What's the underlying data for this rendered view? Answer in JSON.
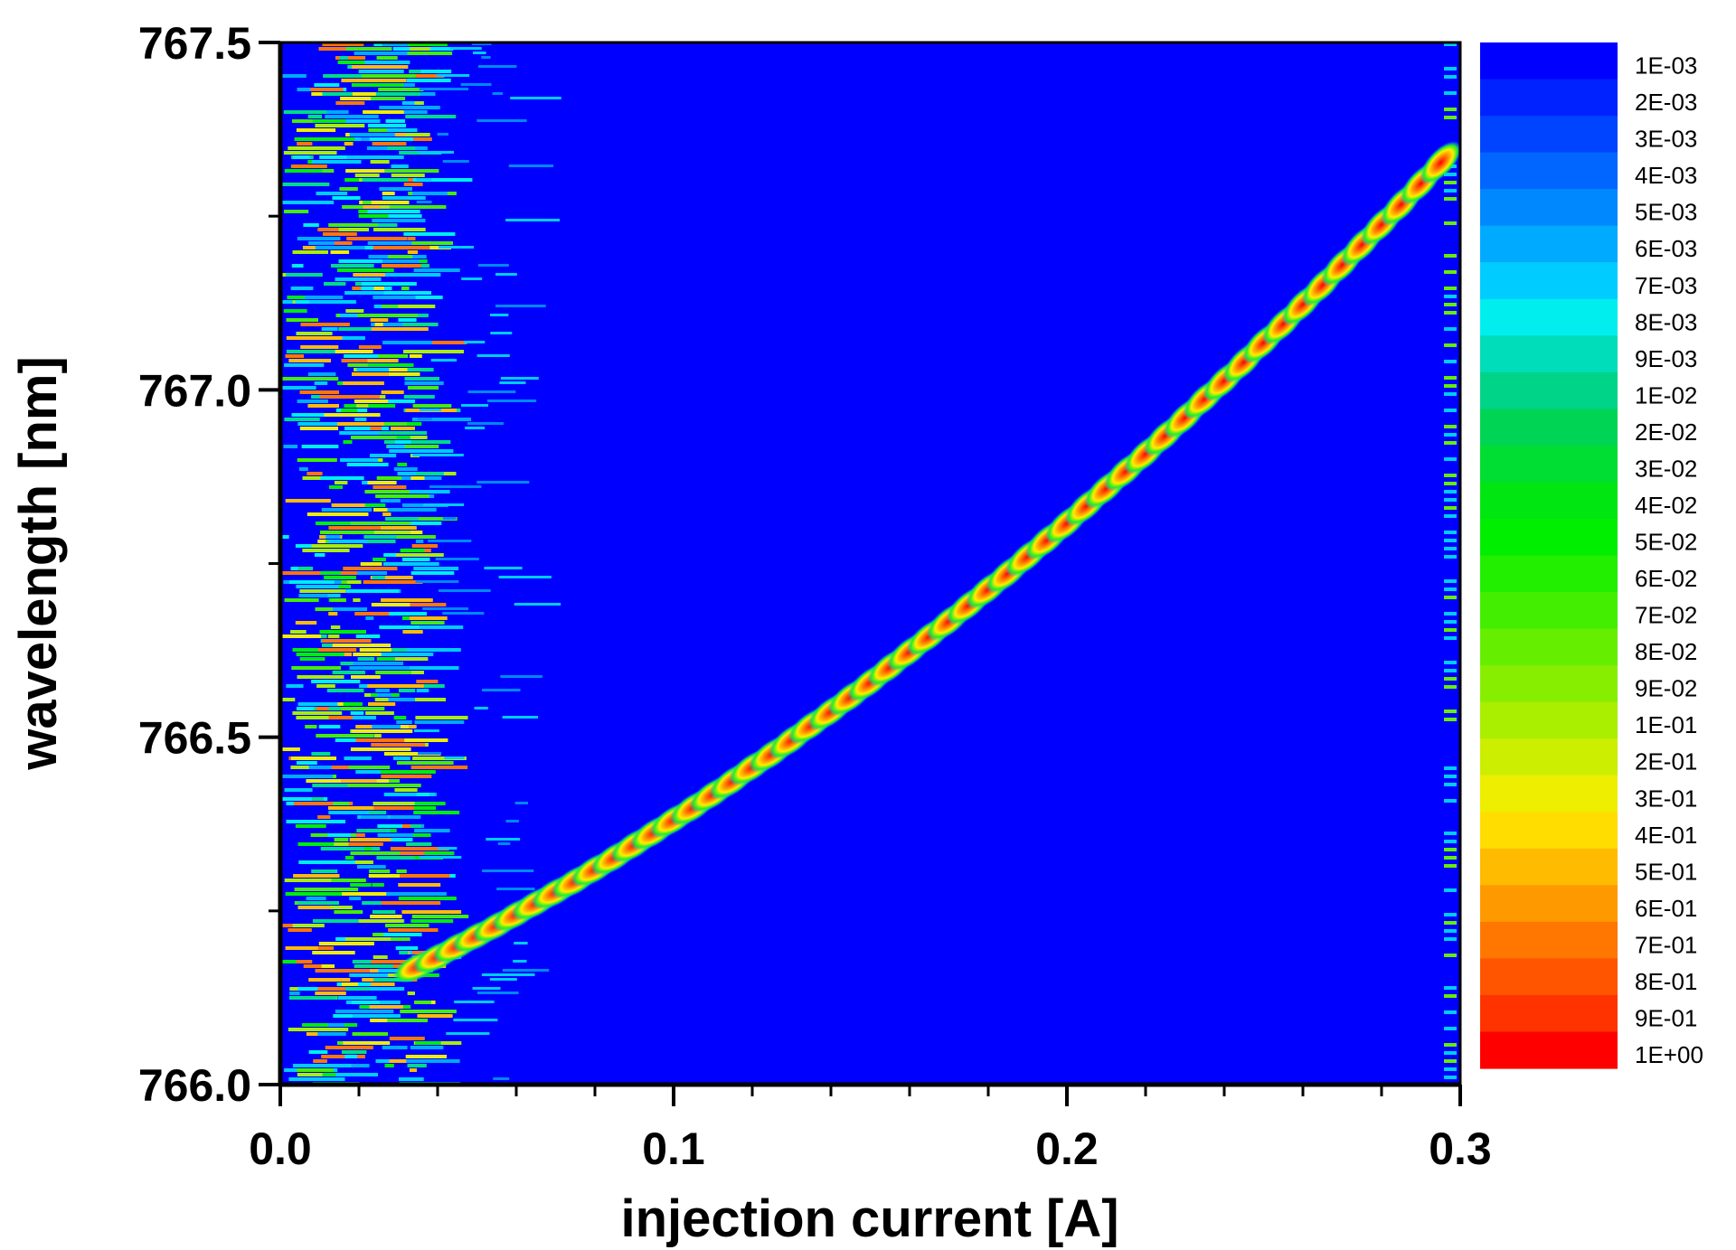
{
  "chart_data": {
    "type": "heatmap",
    "title": "",
    "xlabel": "injection current [A]",
    "ylabel": "wavelength [nm]",
    "xlim": [
      0.0,
      0.3
    ],
    "ylim": [
      766.0,
      767.5
    ],
    "x_ticks": [
      {
        "value": 0.0,
        "label": "0.0"
      },
      {
        "value": 0.1,
        "label": "0.1"
      },
      {
        "value": 0.2,
        "label": "0.2"
      },
      {
        "value": 0.3,
        "label": "0.3"
      }
    ],
    "y_ticks": [
      {
        "value": 766.0,
        "label": "766.0"
      },
      {
        "value": 766.5,
        "label": "766.5"
      },
      {
        "value": 767.0,
        "label": "767.0"
      },
      {
        "value": 767.5,
        "label": "767.5"
      }
    ],
    "x_minor_step": 0.02,
    "y_minor_step": 0.25,
    "background_color": "#0000ff",
    "noise_region_x": [
      0.0,
      0.035
    ],
    "peak_series": {
      "x": [
        0.035,
        0.04,
        0.045,
        0.05,
        0.055,
        0.06,
        0.065,
        0.07,
        0.075,
        0.08,
        0.085,
        0.09,
        0.095,
        0.1,
        0.105,
        0.11,
        0.115,
        0.12,
        0.125,
        0.13,
        0.135,
        0.14,
        0.145,
        0.15,
        0.155,
        0.16,
        0.165,
        0.17,
        0.175,
        0.18,
        0.185,
        0.19,
        0.195,
        0.2,
        0.205,
        0.21,
        0.215,
        0.22,
        0.225,
        0.23,
        0.235,
        0.24,
        0.245,
        0.25,
        0.255,
        0.26,
        0.265,
        0.27,
        0.275,
        0.28,
        0.285,
        0.29,
        0.295
      ],
      "y": [
        766.17,
        766.184,
        766.199,
        766.214,
        766.229,
        766.245,
        766.261,
        766.277,
        766.293,
        766.31,
        766.327,
        766.345,
        766.363,
        766.381,
        766.399,
        766.418,
        766.437,
        766.457,
        766.476,
        766.496,
        766.517,
        766.537,
        766.558,
        766.579,
        766.601,
        766.623,
        766.645,
        766.667,
        766.69,
        766.713,
        766.736,
        766.76,
        766.784,
        766.808,
        766.833,
        766.858,
        766.883,
        766.908,
        766.934,
        766.96,
        766.987,
        767.013,
        767.04,
        767.068,
        767.095,
        767.123,
        767.151,
        767.18,
        767.209,
        767.238,
        767.267,
        767.297,
        767.327
      ]
    },
    "colorbar": {
      "labels": [
        "1E-03",
        "2E-03",
        "3E-03",
        "4E-03",
        "5E-03",
        "6E-03",
        "7E-03",
        "8E-03",
        "9E-03",
        "1E-02",
        "2E-02",
        "3E-02",
        "4E-02",
        "5E-02",
        "6E-02",
        "7E-02",
        "8E-02",
        "9E-02",
        "1E-01",
        "2E-01",
        "3E-01",
        "4E-01",
        "5E-01",
        "6E-01",
        "7E-01",
        "8E-01",
        "9E-01",
        "1E+00"
      ],
      "colors": [
        "#0000ff",
        "#0022ff",
        "#0044ff",
        "#0066ff",
        "#0088ff",
        "#00aaff",
        "#00ccff",
        "#00eeee",
        "#00ddbb",
        "#00d488",
        "#00d455",
        "#00dd33",
        "#00e611",
        "#00ee00",
        "#22ee00",
        "#44ee00",
        "#66ee00",
        "#88ee00",
        "#aaee00",
        "#ccee00",
        "#eeee00",
        "#ffdd00",
        "#ffbb00",
        "#ff9900",
        "#ff7700",
        "#ff5500",
        "#ff3300",
        "#ff0000"
      ]
    }
  }
}
